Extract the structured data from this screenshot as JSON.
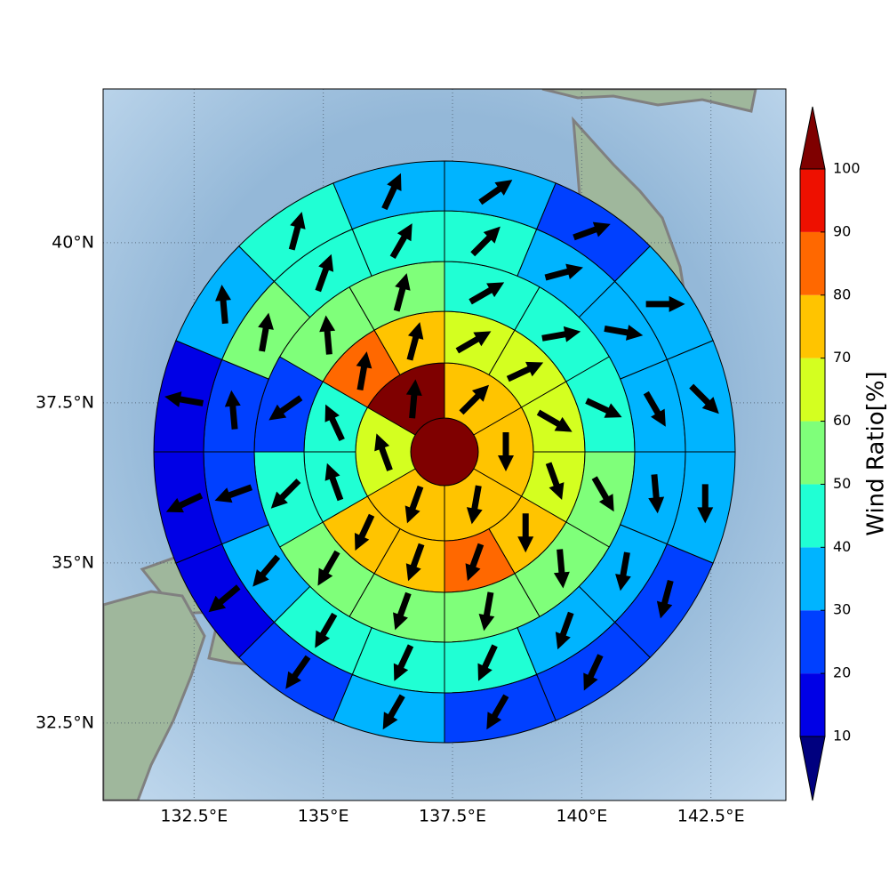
{
  "chart_data": {
    "type": "polar-grid-map",
    "xlim": [
      130.74,
      143.95
    ],
    "ylim": [
      31.29,
      42.4
    ],
    "xticks": [
      {
        "value": 132.5,
        "label": "132.5°E"
      },
      {
        "value": 135,
        "label": "135°E"
      },
      {
        "value": 137.5,
        "label": "137.5°E"
      },
      {
        "value": 140,
        "label": "140°E"
      },
      {
        "value": 142.5,
        "label": "142.5°E"
      }
    ],
    "yticks": [
      {
        "value": 32.5,
        "label": "32.5°N"
      },
      {
        "value": 35,
        "label": "35°N"
      },
      {
        "value": 37.5,
        "label": "37.5°N"
      },
      {
        "value": 40,
        "label": "40°N"
      }
    ],
    "grid": true,
    "center_value": 100,
    "rings": [
      {
        "values": [
          75,
          75,
          75,
          75,
          65,
          100
        ],
        "directions": [
          45,
          180,
          190,
          200,
          340,
          5
        ]
      },
      {
        "values": [
          65,
          65,
          65,
          65,
          75,
          85,
          75,
          75,
          45,
          45,
          85,
          75
        ],
        "directions": [
          60,
          65,
          120,
          160,
          180,
          200,
          200,
          205,
          340,
          335,
          10,
          15
        ]
      },
      {
        "values": [
          45,
          45,
          45,
          55,
          55,
          55,
          55,
          55,
          45,
          25,
          55,
          55
        ],
        "directions": [
          60,
          80,
          115,
          150,
          175,
          190,
          200,
          210,
          225,
          235,
          355,
          15
        ]
      },
      {
        "values": [
          45,
          35,
          35,
          35,
          35,
          35,
          35,
          45,
          45,
          45,
          35,
          25,
          25,
          55,
          45,
          45
        ],
        "directions": [
          45,
          75,
          100,
          150,
          175,
          190,
          200,
          205,
          205,
          210,
          220,
          250,
          355,
          10,
          20,
          30
        ]
      },
      {
        "values": [
          35,
          25,
          35,
          35,
          35,
          25,
          25,
          25,
          35,
          25,
          15,
          15,
          15,
          35,
          45,
          35
        ],
        "directions": [
          55,
          70,
          90,
          135,
          180,
          195,
          205,
          210,
          210,
          215,
          230,
          245,
          280,
          355,
          15,
          25
        ]
      }
    ],
    "colorbar": {
      "label": "Wind Ratio[%]",
      "ticks": [
        10,
        20,
        30,
        40,
        50,
        60,
        70,
        80,
        90,
        100
      ],
      "colors": [
        "#00007f",
        "#0000e6",
        "#0040ff",
        "#00b4ff",
        "#20ffd4",
        "#7fff7a",
        "#d4ff20",
        "#ffc400",
        "#ff6800",
        "#ee1000",
        "#7f0000"
      ],
      "extend": "both"
    }
  }
}
